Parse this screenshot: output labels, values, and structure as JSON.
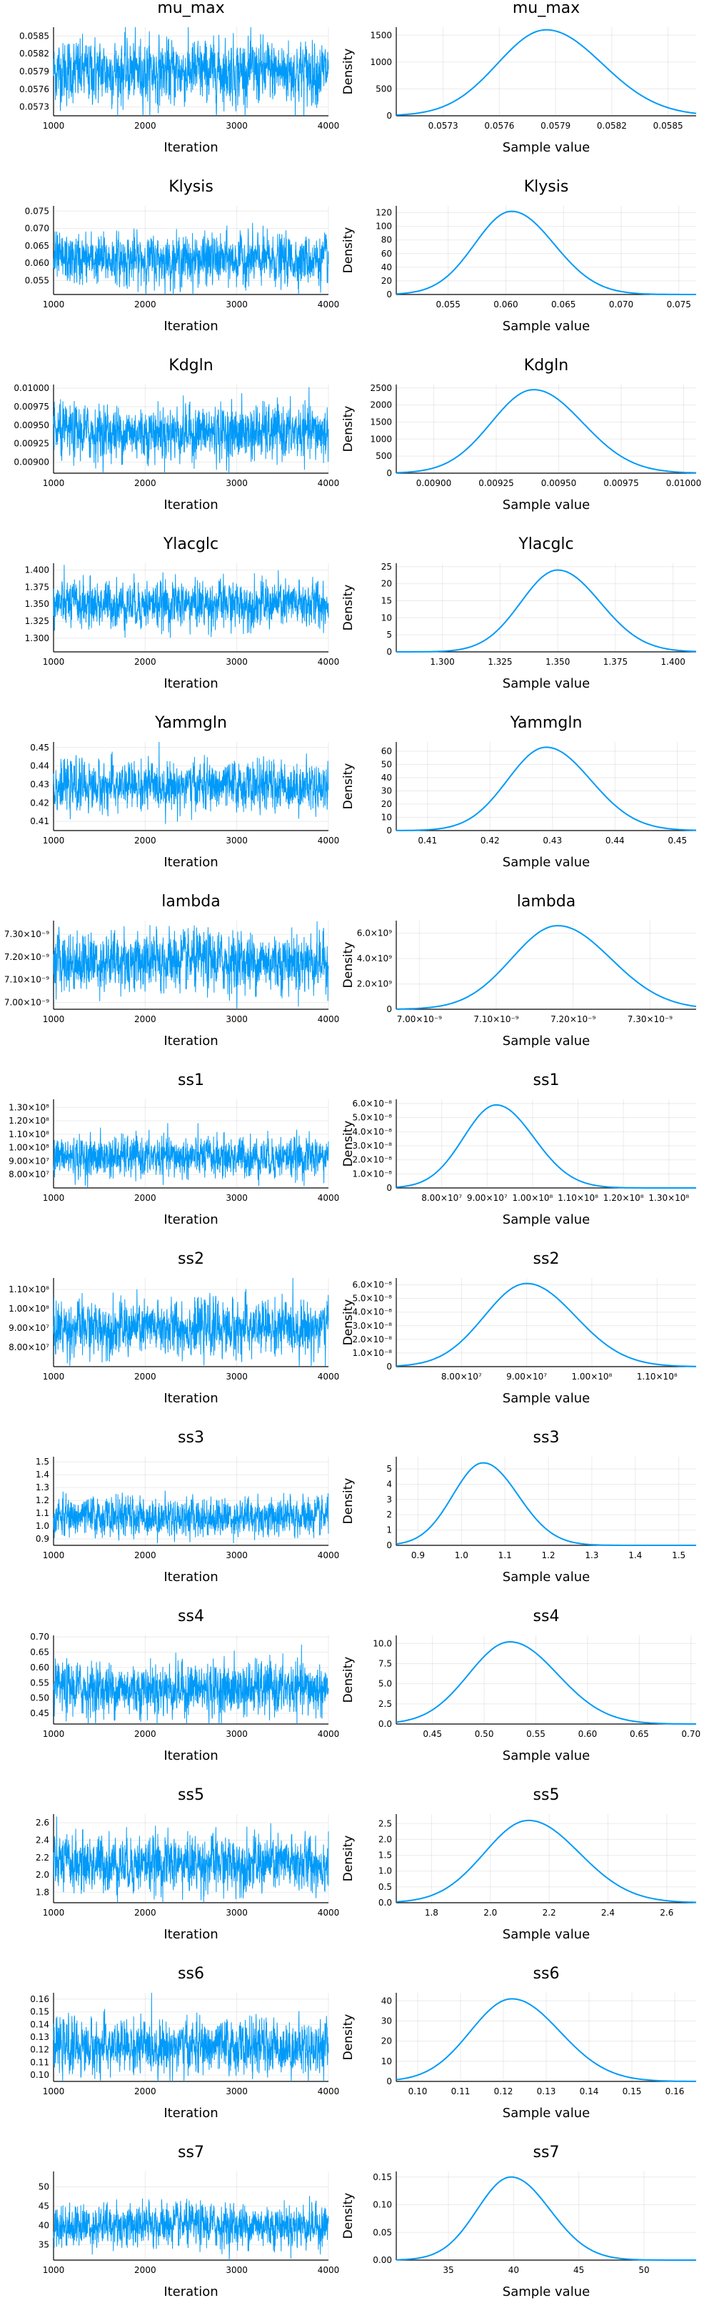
{
  "chart_data": [
    {
      "parameter": "mu_max",
      "color": "#009af9",
      "trace": {
        "type": "line",
        "title": "mu_max",
        "xlabel": "Iteration",
        "ylabel": "",
        "xlim": [
          1000,
          4000
        ],
        "xticks": [
          "1000",
          "2000",
          "3000",
          "4000"
        ],
        "yticks": [
          "0.0573",
          "0.0576",
          "0.0579",
          "0.0582",
          "0.0585"
        ],
        "ylim": [
          0.05715,
          0.05865
        ],
        "center": 0.0579,
        "spread": 0.00025
      },
      "density": {
        "type": "line",
        "title": "mu_max",
        "xlabel": "Sample value",
        "ylabel": "Density",
        "xlim": [
          0.05705,
          0.05865
        ],
        "xticks": [
          "0.0573",
          "0.0576",
          "0.0579",
          "0.0582",
          "0.0585"
        ],
        "ylim": [
          0,
          1650
        ],
        "yticks": [
          "0",
          "500",
          "1000",
          "1500"
        ],
        "mode": 0.05785,
        "peak": 1600,
        "spread": 0.00026
      }
    },
    {
      "parameter": "Klysis",
      "color": "#009af9",
      "trace": {
        "type": "line",
        "title": "Klysis",
        "xlabel": "Iteration",
        "ylabel": "",
        "xlim": [
          1000,
          4000
        ],
        "xticks": [
          "1000",
          "2000",
          "3000",
          "4000"
        ],
        "yticks": [
          "0.055",
          "0.060",
          "0.065",
          "0.070",
          "0.075"
        ],
        "ylim": [
          0.051,
          0.0765
        ],
        "center": 0.061,
        "spread": 0.0033
      },
      "density": {
        "type": "line",
        "title": "Klysis",
        "xlabel": "Sample value",
        "ylabel": "Density",
        "xlim": [
          0.0505,
          0.0765
        ],
        "xticks": [
          "0.055",
          "0.060",
          "0.065",
          "0.070",
          "0.075"
        ],
        "ylim": [
          0,
          130
        ],
        "yticks": [
          "0",
          "20",
          "40",
          "60",
          "80",
          "100",
          "120"
        ],
        "mode": 0.0605,
        "peak": 122,
        "spread": 0.0032
      }
    },
    {
      "parameter": "Kdgln",
      "color": "#009af9",
      "trace": {
        "type": "line",
        "title": "Kdgln",
        "xlabel": "Iteration",
        "ylabel": "",
        "xlim": [
          1000,
          4000
        ],
        "xticks": [
          "1000",
          "2000",
          "3000",
          "4000"
        ],
        "yticks": [
          "0.00900",
          "0.00925",
          "0.00950",
          "0.00975",
          "0.01000"
        ],
        "ylim": [
          0.00885,
          0.01005
        ],
        "center": 0.0094,
        "spread": 0.00017
      },
      "density": {
        "type": "line",
        "title": "Kdgln",
        "xlabel": "Sample value",
        "ylabel": "Density",
        "xlim": [
          0.00885,
          0.01005
        ],
        "xticks": [
          "0.00900",
          "0.00925",
          "0.00950",
          "0.00975",
          "0.01000"
        ],
        "ylim": [
          0,
          2600
        ],
        "yticks": [
          "0",
          "500",
          "1000",
          "1500",
          "2000",
          "2500"
        ],
        "mode": 0.0094,
        "peak": 2450,
        "spread": 0.00017
      }
    },
    {
      "parameter": "Ylacglc",
      "color": "#009af9",
      "trace": {
        "type": "line",
        "title": "Ylacglc",
        "xlabel": "Iteration",
        "ylabel": "",
        "xlim": [
          1000,
          4000
        ],
        "xticks": [
          "1000",
          "2000",
          "3000",
          "4000"
        ],
        "yticks": [
          "1.300",
          "1.325",
          "1.350",
          "1.375",
          "1.400"
        ],
        "ylim": [
          1.28,
          1.41
        ],
        "center": 1.35,
        "spread": 0.016
      },
      "density": {
        "type": "line",
        "title": "Ylacglc",
        "xlabel": "Sample value",
        "ylabel": "Density",
        "xlim": [
          1.28,
          1.41
        ],
        "xticks": [
          "1.300",
          "1.325",
          "1.350",
          "1.375",
          "1.400"
        ],
        "ylim": [
          0,
          26
        ],
        "yticks": [
          "0",
          "5",
          "10",
          "15",
          "20",
          "25"
        ],
        "mode": 1.35,
        "peak": 24,
        "spread": 0.016
      }
    },
    {
      "parameter": "Yammgln",
      "color": "#009af9",
      "trace": {
        "type": "line",
        "title": "Yammgln",
        "xlabel": "Iteration",
        "ylabel": "",
        "xlim": [
          1000,
          4000
        ],
        "xticks": [
          "1000",
          "2000",
          "3000",
          "4000"
        ],
        "yticks": [
          "0.41",
          "0.42",
          "0.43",
          "0.44",
          "0.45"
        ],
        "ylim": [
          0.405,
          0.453
        ],
        "center": 0.429,
        "spread": 0.006
      },
      "density": {
        "type": "line",
        "title": "Yammgln",
        "xlabel": "Sample value",
        "ylabel": "Density",
        "xlim": [
          0.405,
          0.453
        ],
        "xticks": [
          "0.41",
          "0.42",
          "0.43",
          "0.44",
          "0.45"
        ],
        "ylim": [
          0,
          67
        ],
        "yticks": [
          "0",
          "10",
          "20",
          "30",
          "40",
          "50",
          "60"
        ],
        "mode": 0.429,
        "peak": 63,
        "spread": 0.0062
      }
    },
    {
      "parameter": "lambda",
      "color": "#009af9",
      "trace": {
        "type": "line",
        "title": "lambda",
        "xlabel": "Iteration",
        "ylabel": "",
        "xlim": [
          1000,
          4000
        ],
        "xticks": [
          "1000",
          "2000",
          "3000",
          "4000"
        ],
        "yticks": [
          "7.00×10⁻⁹",
          "7.10×10⁻⁹",
          "7.20×10⁻⁹",
          "7.30×10⁻⁹"
        ],
        "ylim": [
          6.97e-09,
          7.36e-09
        ],
        "center": 7.18e-09,
        "spread": 6e-11
      },
      "density": {
        "type": "line",
        "title": "lambda",
        "xlabel": "Sample value",
        "ylabel": "Density",
        "xlim": [
          6.97e-09,
          7.36e-09
        ],
        "xticks": [
          "7.00×10⁻⁹",
          "7.10×10⁻⁹",
          "7.20×10⁻⁹",
          "7.30×10⁻⁹"
        ],
        "ylim": [
          0,
          7000000000.0
        ],
        "yticks": [
          "0",
          "2.0×10⁹",
          "4.0×10⁹",
          "6.0×10⁹"
        ],
        "mode": 7.18e-09,
        "peak": 6600000000.0,
        "spread": 6e-11
      }
    },
    {
      "parameter": "ss1",
      "color": "#009af9",
      "trace": {
        "type": "line",
        "title": "ss1",
        "xlabel": "Iteration",
        "ylabel": "",
        "xlim": [
          1000,
          4000
        ],
        "xticks": [
          "1000",
          "2000",
          "3000",
          "4000"
        ],
        "yticks": [
          "8.00×10⁷",
          "9.00×10⁷",
          "1.00×10⁸",
          "1.10×10⁸",
          "1.20×10⁸",
          "1.30×10⁸"
        ],
        "ylim": [
          70000000.0,
          136000000.0
        ],
        "center": 93000000.0,
        "spread": 7000000.0
      },
      "density": {
        "type": "line",
        "title": "ss1",
        "xlabel": "Sample value",
        "ylabel": "Density",
        "xlim": [
          70000000.0,
          136000000.0
        ],
        "xticks": [
          "8.00×10⁷",
          "9.00×10⁷",
          "1.00×10⁸",
          "1.10×10⁸",
          "1.20×10⁸",
          "1.30×10⁸"
        ],
        "ylim": [
          0,
          6.3e-08
        ],
        "yticks": [
          "0",
          "1.0×10⁻⁸",
          "2.0×10⁻⁸",
          "3.0×10⁻⁸",
          "4.0×10⁻⁸",
          "5.0×10⁻⁸",
          "6.0×10⁻⁸"
        ],
        "mode": 92000000.0,
        "peak": 5.9e-08,
        "spread": 7200000.0
      }
    },
    {
      "parameter": "ss2",
      "color": "#009af9",
      "trace": {
        "type": "line",
        "title": "ss2",
        "xlabel": "Iteration",
        "ylabel": "",
        "xlim": [
          1000,
          4000
        ],
        "xticks": [
          "1000",
          "2000",
          "3000",
          "4000"
        ],
        "yticks": [
          "8.00×10⁷",
          "9.00×10⁷",
          "1.00×10⁸",
          "1.10×10⁸"
        ],
        "ylim": [
          70000000.0,
          116000000.0
        ],
        "center": 90000000.0,
        "spread": 6500000.0
      },
      "density": {
        "type": "line",
        "title": "ss2",
        "xlabel": "Sample value",
        "ylabel": "Density",
        "xlim": [
          70000000.0,
          116000000.0
        ],
        "xticks": [
          "8.00×10⁷",
          "9.00×10⁷",
          "1.00×10⁸",
          "1.10×10⁸"
        ],
        "ylim": [
          0,
          6.5e-08
        ],
        "yticks": [
          "0",
          "1.0×10⁻⁸",
          "2.0×10⁻⁸",
          "3.0×10⁻⁸",
          "4.0×10⁻⁸",
          "5.0×10⁻⁸",
          "6.0×10⁻⁸"
        ],
        "mode": 90000000.0,
        "peak": 6.1e-08,
        "spread": 6500000.0
      }
    },
    {
      "parameter": "ss3",
      "color": "#009af9",
      "trace": {
        "type": "line",
        "title": "ss3",
        "xlabel": "Iteration",
        "ylabel": "",
        "xlim": [
          1000,
          4000
        ],
        "xticks": [
          "1000",
          "2000",
          "3000",
          "4000"
        ],
        "yticks": [
          "0.9",
          "1.0",
          "1.1",
          "1.2",
          "1.3",
          "1.4",
          "1.5"
        ],
        "ylim": [
          0.85,
          1.54
        ],
        "center": 1.07,
        "spread": 0.07
      },
      "density": {
        "type": "line",
        "title": "ss3",
        "xlabel": "Sample value",
        "ylabel": "Density",
        "xlim": [
          0.85,
          1.54
        ],
        "xticks": [
          "0.9",
          "1.0",
          "1.1",
          "1.2",
          "1.3",
          "1.4",
          "1.5"
        ],
        "ylim": [
          0,
          5.8
        ],
        "yticks": [
          "0",
          "1",
          "2",
          "3",
          "4",
          "5"
        ],
        "mode": 1.05,
        "peak": 5.4,
        "spread": 0.07
      }
    },
    {
      "parameter": "ss4",
      "color": "#009af9",
      "trace": {
        "type": "line",
        "title": "ss4",
        "xlabel": "Iteration",
        "ylabel": "",
        "xlim": [
          1000,
          4000
        ],
        "xticks": [
          "1000",
          "2000",
          "3000",
          "4000"
        ],
        "yticks": [
          "0.45",
          "0.50",
          "0.55",
          "0.60",
          "0.65",
          "0.70"
        ],
        "ylim": [
          0.415,
          0.705
        ],
        "center": 0.53,
        "spread": 0.04
      },
      "density": {
        "type": "line",
        "title": "ss4",
        "xlabel": "Sample value",
        "ylabel": "Density",
        "xlim": [
          0.415,
          0.705
        ],
        "xticks": [
          "0.45",
          "0.50",
          "0.55",
          "0.60",
          "0.65",
          "0.70"
        ],
        "ylim": [
          0,
          11
        ],
        "yticks": [
          "0.0",
          "2.5",
          "5.0",
          "7.5",
          "10.0"
        ],
        "mode": 0.525,
        "peak": 10.2,
        "spread": 0.04
      }
    },
    {
      "parameter": "ss5",
      "color": "#009af9",
      "trace": {
        "type": "line",
        "title": "ss5",
        "xlabel": "Iteration",
        "ylabel": "",
        "xlim": [
          1000,
          4000
        ],
        "xticks": [
          "1000",
          "2000",
          "3000",
          "4000"
        ],
        "yticks": [
          "1.8",
          "2.0",
          "2.2",
          "2.4",
          "2.6"
        ],
        "ylim": [
          1.68,
          2.7
        ],
        "center": 2.13,
        "spread": 0.15
      },
      "density": {
        "type": "line",
        "title": "ss5",
        "xlabel": "Sample value",
        "ylabel": "Density",
        "xlim": [
          1.68,
          2.7
        ],
        "xticks": [
          "1.8",
          "2.0",
          "2.2",
          "2.4",
          "2.6"
        ],
        "ylim": [
          0,
          2.8
        ],
        "yticks": [
          "0.0",
          "0.5",
          "1.0",
          "1.5",
          "2.0",
          "2.5"
        ],
        "mode": 2.13,
        "peak": 2.6,
        "spread": 0.15
      }
    },
    {
      "parameter": "ss6",
      "color": "#009af9",
      "trace": {
        "type": "line",
        "title": "ss6",
        "xlabel": "Iteration",
        "ylabel": "",
        "xlim": [
          1000,
          4000
        ],
        "xticks": [
          "1000",
          "2000",
          "3000",
          "4000"
        ],
        "yticks": [
          "0.10",
          "0.11",
          "0.12",
          "0.13",
          "0.14",
          "0.15",
          "0.16"
        ],
        "ylim": [
          0.095,
          0.165
        ],
        "center": 0.122,
        "spread": 0.0097
      },
      "density": {
        "type": "line",
        "title": "ss6",
        "xlabel": "Sample value",
        "ylabel": "Density",
        "xlim": [
          0.095,
          0.165
        ],
        "xticks": [
          "0.10",
          "0.11",
          "0.12",
          "0.13",
          "0.14",
          "0.15",
          "0.16"
        ],
        "ylim": [
          0,
          44
        ],
        "yticks": [
          "0",
          "10",
          "20",
          "30",
          "40"
        ],
        "mode": 0.122,
        "peak": 41,
        "spread": 0.0097
      }
    },
    {
      "parameter": "ss7",
      "color": "#009af9",
      "trace": {
        "type": "line",
        "title": "ss7",
        "xlabel": "Iteration",
        "ylabel": "",
        "xlim": [
          1000,
          4000
        ],
        "xticks": [
          "1000",
          "2000",
          "3000",
          "4000"
        ],
        "yticks": [
          "35",
          "40",
          "45",
          "50"
        ],
        "ylim": [
          31,
          54
        ],
        "center": 40,
        "spread": 2.6
      },
      "density": {
        "type": "line",
        "title": "ss7",
        "xlabel": "Sample value",
        "ylabel": "Density",
        "xlim": [
          31,
          54
        ],
        "xticks": [
          "35",
          "40",
          "45",
          "50"
        ],
        "ylim": [
          0,
          0.16
        ],
        "yticks": [
          "0.00",
          "0.05",
          "0.10",
          "0.15"
        ],
        "mode": 39.8,
        "peak": 0.15,
        "spread": 2.6
      }
    }
  ]
}
